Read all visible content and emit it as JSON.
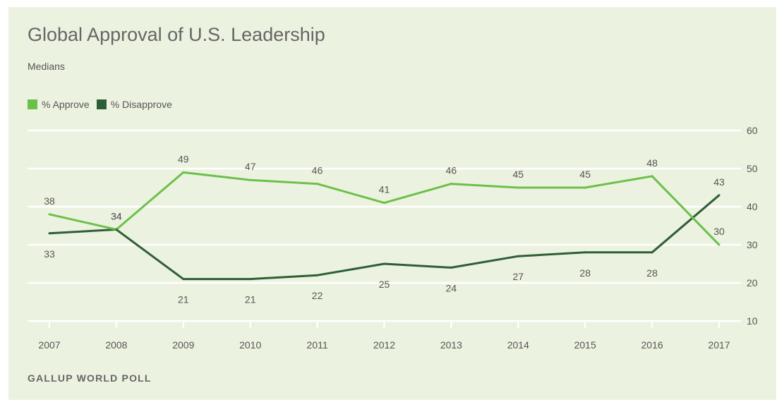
{
  "title": "Global Approval of U.S. Leadership",
  "subtitle": "Medians",
  "source": "GALLUP WORLD POLL",
  "colors": {
    "background": "#ecf2e0",
    "approve": "#6cc04a",
    "disapprove": "#2e5e38",
    "grid": "#ffffff"
  },
  "chart_data": {
    "type": "line",
    "title": "Global Approval of U.S. Leadership",
    "subtitle": "Medians",
    "x": [
      "2007",
      "2008",
      "2009",
      "2010",
      "2011",
      "2012",
      "2013",
      "2014",
      "2015",
      "2016",
      "2017"
    ],
    "series": [
      {
        "name": "% Approve",
        "color": "#6cc04a",
        "values": [
          38,
          34,
          49,
          47,
          46,
          41,
          46,
          45,
          45,
          48,
          30
        ]
      },
      {
        "name": "% Disapprove",
        "color": "#2e5e38",
        "values": [
          33,
          34,
          21,
          21,
          22,
          25,
          24,
          27,
          28,
          28,
          43
        ]
      }
    ],
    "ylim": [
      10,
      60
    ],
    "yticks": [
      "10",
      "20",
      "30",
      "40",
      "50",
      "60"
    ],
    "y_axis_side": "right",
    "grid": true,
    "legend": "top-left",
    "xlabel": "",
    "ylabel": ""
  }
}
